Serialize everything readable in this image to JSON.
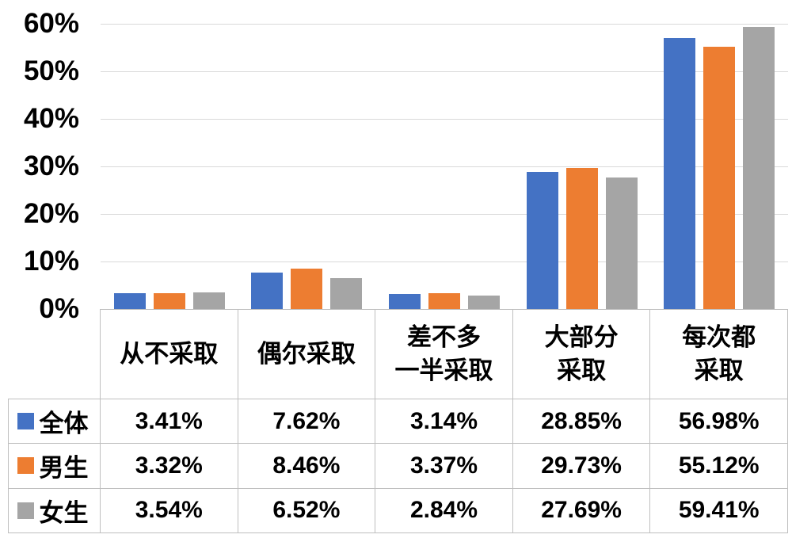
{
  "chart_data": {
    "type": "bar",
    "title": "",
    "xlabel": "",
    "ylabel": "",
    "categories": [
      "从不采取",
      "偶尔采取",
      "差不多\n一半采取",
      "大部分\n采取",
      "每次都\n采取"
    ],
    "series": [
      {
        "name": "全体",
        "color": "#4472C4",
        "values": [
          3.41,
          7.62,
          3.14,
          28.85,
          56.98
        ]
      },
      {
        "name": "男生",
        "color": "#ED7D31",
        "values": [
          3.32,
          8.46,
          3.37,
          29.73,
          55.12
        ]
      },
      {
        "name": "女生",
        "color": "#A5A5A5",
        "values": [
          3.54,
          6.52,
          2.84,
          27.69,
          59.41
        ]
      }
    ],
    "ylim": [
      0,
      60
    ],
    "ytick_step": 10,
    "ytick_labels": [
      "0%",
      "10%",
      "20%",
      "30%",
      "40%",
      "50%",
      "60%"
    ],
    "grid": true,
    "legend_position": "table-rows-left",
    "value_suffix": "%",
    "value_decimals": 2,
    "colors": {
      "gridline": "#D9D9D9",
      "table_border": "#BFBFBF",
      "text": "#000000",
      "background": "#FFFFFF"
    }
  }
}
